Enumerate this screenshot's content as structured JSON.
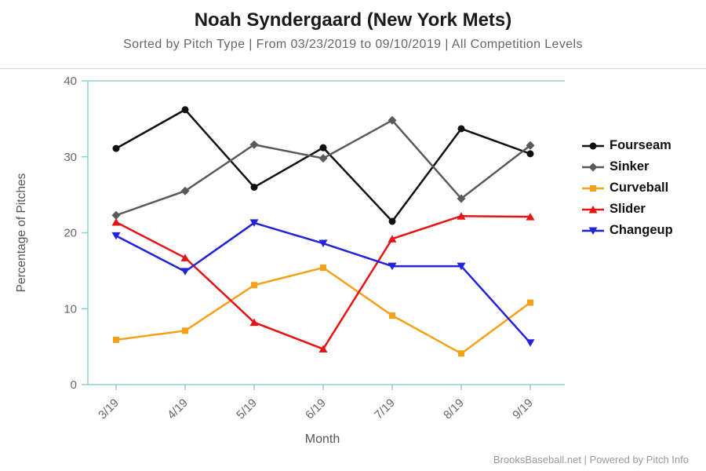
{
  "header": {
    "title": "Noah Syndergaard (New York Mets)",
    "subtitle": "Sorted by Pitch Type | From 03/23/2019 to 09/10/2019 | All Competition Levels"
  },
  "footer": {
    "credit": "BrooksBaseball.net | Powered by Pitch Info"
  },
  "chart_data": {
    "type": "line",
    "title": "Noah Syndergaard (New York Mets)",
    "subtitle": "Sorted by Pitch Type | From 03/23/2019 to 09/10/2019 | All Competition Levels",
    "xlabel": "Month",
    "ylabel": "Percentage of Pitches",
    "ylim": [
      0,
      40
    ],
    "yticks": [
      0,
      10,
      20,
      30,
      40
    ],
    "categories": [
      "3/19",
      "4/19",
      "5/19",
      "6/19",
      "7/19",
      "8/19",
      "9/19"
    ],
    "grid": "top and bottom axis lines only",
    "legend_position": "right",
    "axis_color": "#93cfd1",
    "tick_label_color": "#666666",
    "series": [
      {
        "name": "Fourseam",
        "color": "#111111",
        "marker": "circle",
        "values": [
          31.1,
          36.2,
          26.0,
          31.2,
          21.5,
          33.7,
          30.4
        ]
      },
      {
        "name": "Sinker",
        "color": "#595959",
        "marker": "diamond",
        "values": [
          22.3,
          25.5,
          31.6,
          29.8,
          34.8,
          24.5,
          31.5
        ]
      },
      {
        "name": "Curveball",
        "color": "#f4a118",
        "marker": "square",
        "values": [
          5.9,
          7.1,
          13.1,
          15.4,
          9.1,
          4.1,
          10.8
        ]
      },
      {
        "name": "Slider",
        "color": "#e81212",
        "marker": "triangle-up",
        "values": [
          21.4,
          16.7,
          8.2,
          4.7,
          19.2,
          22.2,
          22.1
        ]
      },
      {
        "name": "Changeup",
        "color": "#2222dd",
        "marker": "triangle-down",
        "values": [
          19.6,
          14.9,
          21.3,
          18.6,
          15.6,
          15.6,
          5.5
        ]
      }
    ]
  }
}
